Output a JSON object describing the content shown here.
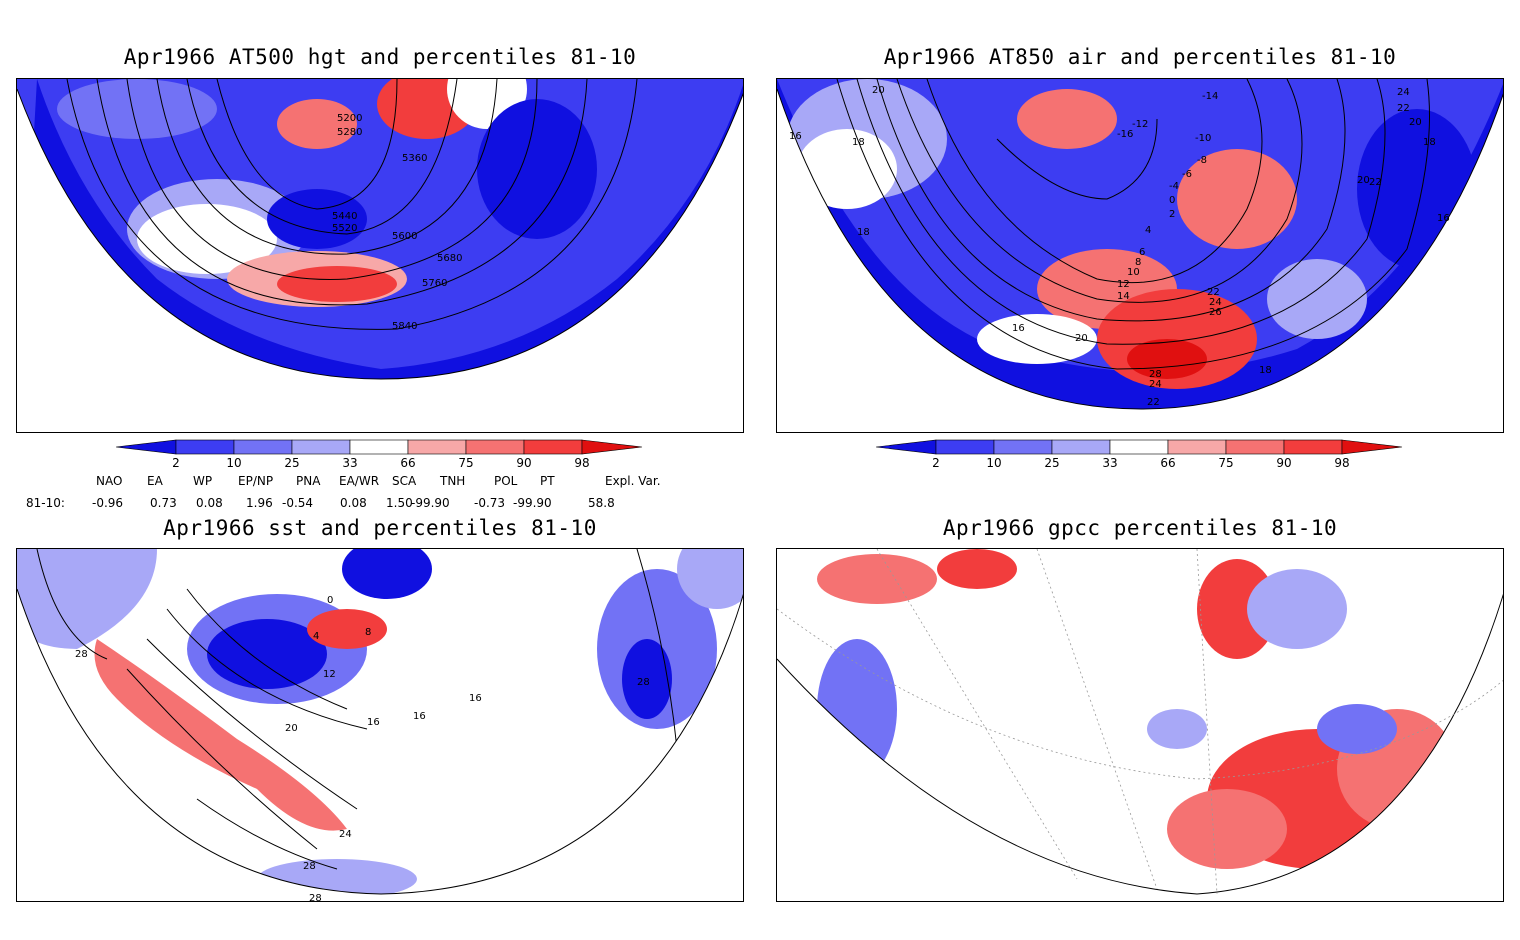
{
  "panels": {
    "p1": {
      "title": "Apr1966 AT500 hgt and percentiles 81-10",
      "contour_labels": [
        "5200",
        "5280",
        "5360",
        "5440",
        "5520",
        "5600",
        "5680",
        "5760",
        "5840"
      ]
    },
    "p2": {
      "title": "Apr1966 AT850 air and percentiles 81-10",
      "contour_labels": [
        "20",
        "16",
        "18",
        "18",
        "-14",
        "-12",
        "-16",
        "-10",
        "-8",
        "-6",
        "-4",
        "0",
        "2",
        "4",
        "6",
        "8",
        "10",
        "12",
        "14",
        "16",
        "20",
        "24",
        "22",
        "20",
        "18",
        "22",
        "16",
        "20",
        "22",
        "24",
        "26",
        "28",
        "24",
        "22",
        "18",
        "20"
      ]
    },
    "p3": {
      "title": "Apr1966 sst and percentiles 81-10",
      "contour_labels": [
        "28",
        "0",
        "4",
        "8",
        "12",
        "16",
        "20",
        "24",
        "28",
        "28",
        "16",
        "16",
        "28"
      ]
    },
    "p4": {
      "title": "Apr1966 gpcc percentiles 81-10"
    }
  },
  "colorbar": {
    "labels": [
      "2",
      "10",
      "25",
      "33",
      "66",
      "75",
      "90",
      "98"
    ],
    "colors": {
      "c2": "#1010e0",
      "c10": "#3d3df2",
      "c25": "#7272f5",
      "c33": "#a8a8f7",
      "c66": "#f7a8a8",
      "c75": "#f57272",
      "c90": "#f23d3d",
      "c98": "#e01010"
    }
  },
  "indices": {
    "headers": [
      "NAO",
      "EA",
      "WP",
      "EP/NP",
      "PNA",
      "EA/WR",
      "SCA",
      "TNH",
      "POL",
      "PT",
      "Expl. Var."
    ],
    "row_label": "81-10:",
    "values": [
      "-0.96",
      "0.73",
      "0.08",
      "1.96",
      "-0.54",
      "0.08",
      "1.50",
      "-99.90",
      "-0.73",
      "-99.90",
      "58.8"
    ]
  },
  "colors": {
    "coast": "#1fbcbc",
    "contour": "#000000",
    "grid": "#999999"
  }
}
